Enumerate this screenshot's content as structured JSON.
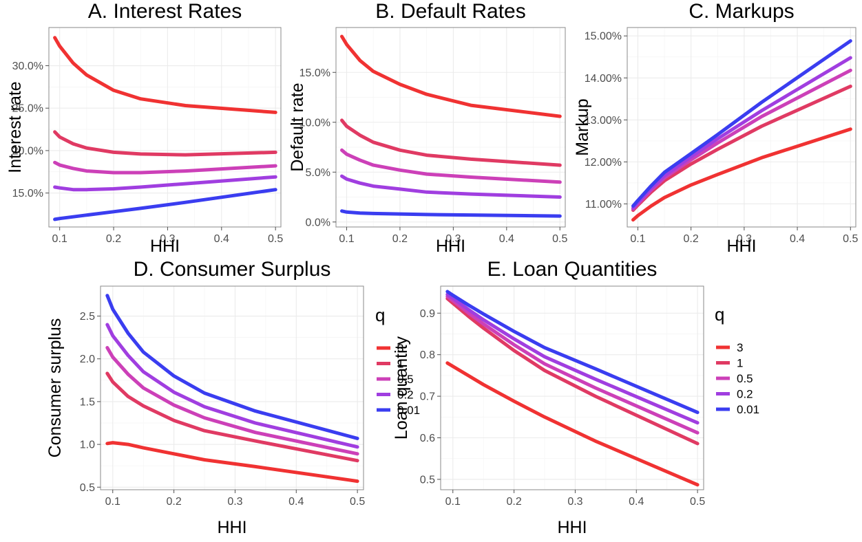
{
  "colors": {
    "q_3": "#f03232",
    "q_1": "#e03a63",
    "q_0_5": "#cc40b8",
    "q_0_2": "#a03ee0",
    "q_0_01": "#3a3df0"
  },
  "legend": {
    "title": "q",
    "items": [
      {
        "label": "3",
        "color": "#f03232"
      },
      {
        "label": "1",
        "color": "#e03a63"
      },
      {
        "label": "0.5",
        "color": "#cc40b8"
      },
      {
        "label": "0.2",
        "color": "#a03ee0"
      },
      {
        "label": "0.01",
        "color": "#3a3df0"
      }
    ]
  },
  "chart_data": [
    {
      "id": "A",
      "type": "line",
      "title": "A. Interest Rates",
      "xlabel": "HHI",
      "ylabel": "Interest rate",
      "xlim": [
        0.08,
        0.51
      ],
      "ylim": [
        11.0,
        34.5
      ],
      "x_ticks": [
        0.1,
        0.2,
        0.3,
        0.4,
        0.5
      ],
      "x_tick_labels": [
        "0.1",
        "0.2",
        "0.3",
        "0.4",
        "0.5"
      ],
      "y_ticks": [
        15,
        20,
        25,
        30
      ],
      "y_tick_labels": [
        "15.0%",
        "20.0%",
        "25.0%",
        "30.0%"
      ],
      "grid": true,
      "legend": "none",
      "series": [
        {
          "q": "3",
          "color": "#f03232",
          "x": [
            0.091,
            0.1,
            0.125,
            0.15,
            0.2,
            0.25,
            0.333,
            0.5
          ],
          "y": [
            33.3,
            32.3,
            30.3,
            28.9,
            27.1,
            26.1,
            25.3,
            24.5
          ]
        },
        {
          "q": "1",
          "color": "#e03a63",
          "x": [
            0.091,
            0.1,
            0.125,
            0.15,
            0.2,
            0.25,
            0.333,
            0.5
          ],
          "y": [
            22.2,
            21.6,
            20.8,
            20.3,
            19.8,
            19.6,
            19.5,
            19.8
          ]
        },
        {
          "q": "0.5",
          "color": "#cc40b8",
          "x": [
            0.091,
            0.1,
            0.125,
            0.15,
            0.2,
            0.25,
            0.333,
            0.5
          ],
          "y": [
            18.6,
            18.3,
            17.9,
            17.6,
            17.4,
            17.4,
            17.6,
            18.2
          ]
        },
        {
          "q": "0.2",
          "color": "#a03ee0",
          "x": [
            0.091,
            0.1,
            0.125,
            0.15,
            0.2,
            0.25,
            0.333,
            0.5
          ],
          "y": [
            15.7,
            15.6,
            15.4,
            15.4,
            15.5,
            15.7,
            16.1,
            16.9
          ]
        },
        {
          "q": "0.01",
          "color": "#3a3df0",
          "x": [
            0.091,
            0.1,
            0.125,
            0.15,
            0.2,
            0.25,
            0.333,
            0.5
          ],
          "y": [
            11.9,
            12.0,
            12.2,
            12.4,
            12.8,
            13.2,
            13.9,
            15.4
          ]
        }
      ]
    },
    {
      "id": "B",
      "type": "line",
      "title": "B. Default Rates",
      "xlabel": "HHI",
      "ylabel": "Default rate",
      "xlim": [
        0.08,
        0.51
      ],
      "ylim": [
        -0.5,
        19.5
      ],
      "x_ticks": [
        0.1,
        0.2,
        0.3,
        0.4,
        0.5
      ],
      "x_tick_labels": [
        "0.1",
        "0.2",
        "0.3",
        "0.4",
        "0.5"
      ],
      "y_ticks": [
        0,
        5,
        10,
        15
      ],
      "y_tick_labels": [
        "0.0%",
        "5.0%",
        "10.0%",
        "15.0%"
      ],
      "grid": true,
      "legend": "none",
      "series": [
        {
          "q": "3",
          "color": "#f03232",
          "x": [
            0.091,
            0.1,
            0.125,
            0.15,
            0.2,
            0.25,
            0.333,
            0.5
          ],
          "y": [
            18.6,
            17.8,
            16.2,
            15.1,
            13.8,
            12.8,
            11.7,
            10.6
          ]
        },
        {
          "q": "1",
          "color": "#e03a63",
          "x": [
            0.091,
            0.1,
            0.125,
            0.15,
            0.2,
            0.25,
            0.333,
            0.5
          ],
          "y": [
            10.2,
            9.6,
            8.7,
            8.0,
            7.2,
            6.7,
            6.3,
            5.7
          ]
        },
        {
          "q": "0.5",
          "color": "#cc40b8",
          "x": [
            0.091,
            0.1,
            0.125,
            0.15,
            0.2,
            0.25,
            0.333,
            0.5
          ],
          "y": [
            7.2,
            6.8,
            6.2,
            5.7,
            5.2,
            4.8,
            4.5,
            4.0
          ]
        },
        {
          "q": "0.2",
          "color": "#a03ee0",
          "x": [
            0.091,
            0.1,
            0.125,
            0.15,
            0.2,
            0.25,
            0.333,
            0.5
          ],
          "y": [
            4.6,
            4.3,
            3.9,
            3.6,
            3.3,
            3.0,
            2.8,
            2.5
          ]
        },
        {
          "q": "0.01",
          "color": "#3a3df0",
          "x": [
            0.091,
            0.1,
            0.125,
            0.15,
            0.2,
            0.25,
            0.333,
            0.5
          ],
          "y": [
            1.1,
            1.0,
            0.9,
            0.85,
            0.8,
            0.75,
            0.7,
            0.6
          ]
        }
      ]
    },
    {
      "id": "C",
      "type": "line",
      "title": "C. Markups",
      "xlabel": "HHI",
      "ylabel": "Markup",
      "xlim": [
        0.08,
        0.51
      ],
      "ylim": [
        10.45,
        15.2
      ],
      "x_ticks": [
        0.1,
        0.2,
        0.3,
        0.4,
        0.5
      ],
      "x_tick_labels": [
        "0.1",
        "0.2",
        "0.3",
        "0.4",
        "0.5"
      ],
      "y_ticks": [
        11,
        12,
        13,
        14,
        15
      ],
      "y_tick_labels": [
        "11.00%",
        "12.00%",
        "13.00%",
        "14.00%",
        "15.00%"
      ],
      "grid": true,
      "legend": "none",
      "series": [
        {
          "q": "3",
          "color": "#f03232",
          "x": [
            0.091,
            0.1,
            0.125,
            0.15,
            0.2,
            0.25,
            0.333,
            0.5
          ],
          "y": [
            10.62,
            10.72,
            10.95,
            11.15,
            11.45,
            11.7,
            12.1,
            12.78
          ]
        },
        {
          "q": "1",
          "color": "#e03a63",
          "x": [
            0.091,
            0.1,
            0.125,
            0.15,
            0.2,
            0.25,
            0.333,
            0.5
          ],
          "y": [
            10.85,
            10.97,
            11.28,
            11.55,
            11.95,
            12.3,
            12.85,
            13.8
          ]
        },
        {
          "q": "0.5",
          "color": "#cc40b8",
          "x": [
            0.091,
            0.1,
            0.125,
            0.15,
            0.2,
            0.25,
            0.333,
            0.5
          ],
          "y": [
            10.88,
            11.0,
            11.33,
            11.62,
            12.05,
            12.45,
            13.08,
            14.18
          ]
        },
        {
          "q": "0.2",
          "color": "#a03ee0",
          "x": [
            0.091,
            0.1,
            0.125,
            0.15,
            0.2,
            0.25,
            0.333,
            0.5
          ],
          "y": [
            10.9,
            11.03,
            11.37,
            11.67,
            12.12,
            12.55,
            13.22,
            14.48
          ]
        },
        {
          "q": "0.01",
          "color": "#3a3df0",
          "x": [
            0.091,
            0.1,
            0.125,
            0.15,
            0.2,
            0.25,
            0.333,
            0.5
          ],
          "y": [
            10.95,
            11.08,
            11.43,
            11.75,
            12.2,
            12.65,
            13.42,
            14.88
          ]
        }
      ]
    },
    {
      "id": "D",
      "type": "line",
      "title": "D. Consumer Surplus",
      "xlabel": "HHI",
      "ylabel": "Consumer surplus",
      "xlim": [
        0.08,
        0.51
      ],
      "ylim": [
        0.47,
        2.85
      ],
      "x_ticks": [
        0.1,
        0.2,
        0.3,
        0.4,
        0.5
      ],
      "x_tick_labels": [
        "0.1",
        "0.2",
        "0.3",
        "0.4",
        "0.5"
      ],
      "y_ticks": [
        0.5,
        1.0,
        1.5,
        2.0,
        2.5
      ],
      "y_tick_labels": [
        "0.5",
        "1.0",
        "1.5",
        "2.0",
        "2.5"
      ],
      "grid": true,
      "legend": "right",
      "series": [
        {
          "q": "3",
          "color": "#f03232",
          "x": [
            0.091,
            0.1,
            0.125,
            0.15,
            0.2,
            0.25,
            0.333,
            0.5
          ],
          "y": [
            1.01,
            1.02,
            1.0,
            0.96,
            0.89,
            0.82,
            0.74,
            0.57
          ]
        },
        {
          "q": "1",
          "color": "#e03a63",
          "x": [
            0.091,
            0.1,
            0.125,
            0.15,
            0.2,
            0.25,
            0.333,
            0.5
          ],
          "y": [
            1.83,
            1.73,
            1.56,
            1.45,
            1.28,
            1.16,
            1.04,
            0.81
          ]
        },
        {
          "q": "0.5",
          "color": "#cc40b8",
          "x": [
            0.091,
            0.1,
            0.125,
            0.15,
            0.2,
            0.25,
            0.333,
            0.5
          ],
          "y": [
            2.13,
            2.02,
            1.82,
            1.66,
            1.46,
            1.31,
            1.14,
            0.89
          ]
        },
        {
          "q": "0.2",
          "color": "#a03ee0",
          "x": [
            0.091,
            0.1,
            0.125,
            0.15,
            0.2,
            0.25,
            0.333,
            0.5
          ],
          "y": [
            2.4,
            2.27,
            2.04,
            1.85,
            1.61,
            1.44,
            1.25,
            0.97
          ]
        },
        {
          "q": "0.01",
          "color": "#3a3df0",
          "x": [
            0.091,
            0.1,
            0.125,
            0.15,
            0.2,
            0.25,
            0.333,
            0.5
          ],
          "y": [
            2.74,
            2.58,
            2.3,
            2.08,
            1.8,
            1.6,
            1.39,
            1.07
          ]
        }
      ]
    },
    {
      "id": "E",
      "type": "line",
      "title": "E. Loan Quantities",
      "xlabel": "HHI",
      "ylabel": "Loan quantity",
      "xlim": [
        0.08,
        0.51
      ],
      "ylim": [
        0.475,
        0.965
      ],
      "x_ticks": [
        0.1,
        0.2,
        0.3,
        0.4,
        0.5
      ],
      "x_tick_labels": [
        "0.1",
        "0.2",
        "0.3",
        "0.4",
        "0.5"
      ],
      "y_ticks": [
        0.5,
        0.6,
        0.7,
        0.8,
        0.9
      ],
      "y_tick_labels": [
        "0.5",
        "0.6",
        "0.7",
        "0.8",
        "0.9"
      ],
      "grid": true,
      "legend": "right",
      "series": [
        {
          "q": "3",
          "color": "#f03232",
          "x": [
            0.091,
            0.1,
            0.125,
            0.15,
            0.2,
            0.25,
            0.333,
            0.5
          ],
          "y": [
            0.78,
            0.772,
            0.75,
            0.728,
            0.688,
            0.65,
            0.592,
            0.487
          ]
        },
        {
          "q": "1",
          "color": "#e03a63",
          "x": [
            0.091,
            0.1,
            0.125,
            0.15,
            0.2,
            0.25,
            0.333,
            0.5
          ],
          "y": [
            0.935,
            0.924,
            0.893,
            0.864,
            0.81,
            0.762,
            0.7,
            0.586
          ]
        },
        {
          "q": "0.5",
          "color": "#cc40b8",
          "x": [
            0.091,
            0.1,
            0.125,
            0.15,
            0.2,
            0.25,
            0.333,
            0.5
          ],
          "y": [
            0.94,
            0.93,
            0.901,
            0.874,
            0.824,
            0.778,
            0.72,
            0.612
          ]
        },
        {
          "q": "0.2",
          "color": "#a03ee0",
          "x": [
            0.091,
            0.1,
            0.125,
            0.15,
            0.2,
            0.25,
            0.333,
            0.5
          ],
          "y": [
            0.945,
            0.936,
            0.909,
            0.884,
            0.838,
            0.795,
            0.741,
            0.636
          ]
        },
        {
          "q": "0.01",
          "color": "#3a3df0",
          "x": [
            0.091,
            0.1,
            0.125,
            0.15,
            0.2,
            0.25,
            0.333,
            0.5
          ],
          "y": [
            0.952,
            0.943,
            0.92,
            0.898,
            0.856,
            0.817,
            0.766,
            0.661
          ]
        }
      ]
    }
  ]
}
